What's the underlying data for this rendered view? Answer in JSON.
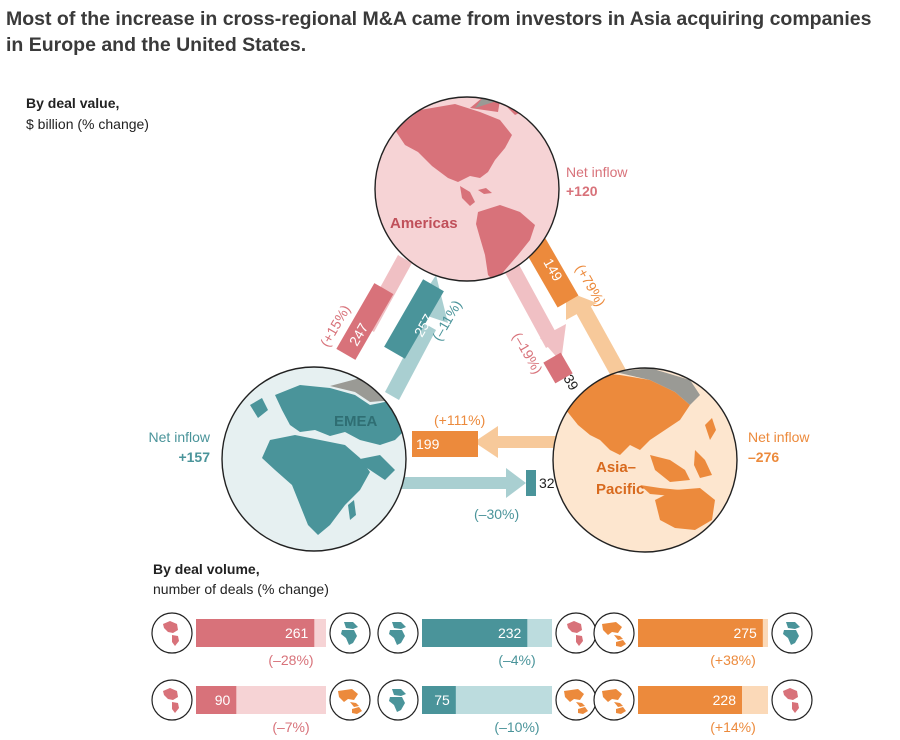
{
  "title": "Most of the increase in cross-regional M&A came from investors in Asia acquiring companies in Europe and the United States.",
  "value_section": {
    "title": "By deal value,",
    "subtitle": "$ billion (% change)"
  },
  "volume_section": {
    "title": "By deal volume,",
    "subtitle": "number of deals (% change)"
  },
  "regions": {
    "americas": {
      "name": "Americas",
      "net_label": "Net inflow",
      "net_value": "+120",
      "color": "#d8727a"
    },
    "emea": {
      "name": "EMEA",
      "net_label": "Net inflow",
      "net_value": "+157",
      "color": "#4a949a"
    },
    "asia": {
      "name_line1": "Asia–",
      "name_line2": "Pacific",
      "net_label": "Net inflow",
      "net_value": "–276",
      "color": "#ec8a3c"
    }
  },
  "value_flows": [
    {
      "from": "Americas",
      "to": "EMEA",
      "value": "247",
      "change": "(+15%)"
    },
    {
      "from": "EMEA",
      "to": "Americas",
      "value": "257",
      "change": "(–11%)"
    },
    {
      "from": "Asia–Pacific",
      "to": "Americas",
      "value": "149",
      "change": "(+79%)"
    },
    {
      "from": "Americas",
      "to": "Asia–Pacific",
      "value": "39",
      "change": "(–19%)"
    },
    {
      "from": "Asia–Pacific",
      "to": "EMEA",
      "value": "199",
      "change": "(+111%)"
    },
    {
      "from": "EMEA",
      "to": "Asia–Pacific",
      "value": "32",
      "change": "(–30%)"
    }
  ],
  "volume_rows": [
    [
      {
        "from": "Americas",
        "to": "EMEA",
        "value": "261",
        "change": "(–28%)",
        "fraction": 0.91
      },
      {
        "from": "EMEA",
        "to": "Americas",
        "value": "232",
        "change": "(–4%)",
        "fraction": 0.81
      },
      {
        "from": "Asia–Pacific",
        "to": "EMEA",
        "value": "275",
        "change": "(+38%)",
        "fraction": 0.96
      }
    ],
    [
      {
        "from": "Americas",
        "to": "Asia–Pacific",
        "value": "90",
        "change": "(–7%)",
        "fraction": 0.31
      },
      {
        "from": "EMEA",
        "to": "Asia–Pacific",
        "value": "75",
        "change": "(–10%)",
        "fraction": 0.26
      },
      {
        "from": "Asia–Pacific",
        "to": "Americas",
        "value": "228",
        "change": "(+14%)",
        "fraction": 0.8
      }
    ]
  ]
}
